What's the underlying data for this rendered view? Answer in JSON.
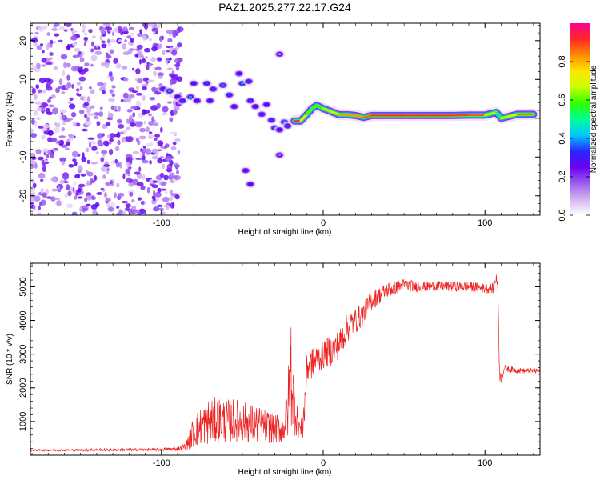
{
  "chart_data": [
    {
      "type": "heatmap",
      "title": "PAZ1.2025.277.22.17.G24",
      "xlabel": "Height of straight line (km)",
      "ylabel": "Frequency (Hz)",
      "xlim": [
        -181,
        134
      ],
      "ylim": [
        -25,
        24.5
      ],
      "xticks": [
        -100,
        0,
        100
      ],
      "yticks": [
        -20,
        -10,
        0,
        10,
        20
      ],
      "colorbar": {
        "label": "Normalized spectral amplitude",
        "range": [
          0,
          1
        ],
        "ticks": [
          0.0,
          0.2,
          0.4,
          0.6,
          0.8
        ],
        "colormap": [
          "#ffffff",
          "#d2b4f0",
          "#9b5ef0",
          "#6a00f0",
          "#2828ff",
          "#00c8ff",
          "#00ff96",
          "#32ff00",
          "#c8ff00",
          "#ffe600",
          "#ff8c00",
          "#ff2828",
          "#ff0090"
        ]
      },
      "noise_region_x": [
        -181,
        -88
      ],
      "ridge_points": [
        {
          "x": -99,
          "y": 7.5,
          "v": 0.35
        },
        {
          "x": -95,
          "y": 7.0,
          "v": 0.4
        },
        {
          "x": -90,
          "y": 5.5,
          "v": 0.3
        },
        {
          "x": -87,
          "y": 4.5,
          "v": 0.35
        },
        {
          "x": -82,
          "y": 5.5,
          "v": 0.4
        },
        {
          "x": -78,
          "y": 4.5,
          "v": 0.3
        },
        {
          "x": -80,
          "y": 9.0,
          "v": 0.3
        },
        {
          "x": -72,
          "y": 9.0,
          "v": 0.35
        },
        {
          "x": -70,
          "y": 4.5,
          "v": 0.3
        },
        {
          "x": -68,
          "y": 7.5,
          "v": 0.35
        },
        {
          "x": -62,
          "y": 8.5,
          "v": 0.4
        },
        {
          "x": -58,
          "y": 6.0,
          "v": 0.35
        },
        {
          "x": -55,
          "y": 3.0,
          "v": 0.3
        },
        {
          "x": -52,
          "y": 11.5,
          "v": 0.3
        },
        {
          "x": -50,
          "y": 9.0,
          "v": 0.4
        },
        {
          "x": -46,
          "y": 9.5,
          "v": 0.35
        },
        {
          "x": -45,
          "y": 4.5,
          "v": 0.35
        },
        {
          "x": -42,
          "y": 3.0,
          "v": 0.3
        },
        {
          "x": -38,
          "y": 1.0,
          "v": 0.35
        },
        {
          "x": -35,
          "y": 3.5,
          "v": 0.3
        },
        {
          "x": -32,
          "y": -0.5,
          "v": 0.35
        },
        {
          "x": -30,
          "y": -2.5,
          "v": 0.4
        },
        {
          "x": -27,
          "y": -3.0,
          "v": 0.3
        },
        {
          "x": -24,
          "y": -1.0,
          "v": 0.45
        },
        {
          "x": -22,
          "y": -2.0,
          "v": 0.35
        },
        {
          "x": -18,
          "y": -0.7,
          "v": 0.95
        },
        {
          "x": -14,
          "y": -0.7,
          "v": 0.9
        },
        {
          "x": -10,
          "y": 1.0,
          "v": 0.6
        },
        {
          "x": -7,
          "y": 2.5,
          "v": 0.55
        },
        {
          "x": -4,
          "y": 3.3,
          "v": 0.55
        },
        {
          "x": 0,
          "y": 2.5,
          "v": 0.6
        },
        {
          "x": 5,
          "y": 1.7,
          "v": 0.7
        },
        {
          "x": 10,
          "y": 0.9,
          "v": 0.8
        },
        {
          "x": 15,
          "y": 0.9,
          "v": 0.85
        },
        {
          "x": 20,
          "y": 0.7,
          "v": 0.8
        },
        {
          "x": 25,
          "y": 0.2,
          "v": 0.85
        },
        {
          "x": 30,
          "y": 0.7,
          "v": 0.9
        },
        {
          "x": 40,
          "y": 0.7,
          "v": 0.92
        },
        {
          "x": 50,
          "y": 0.7,
          "v": 0.92
        },
        {
          "x": 60,
          "y": 0.7,
          "v": 0.9
        },
        {
          "x": 70,
          "y": 0.7,
          "v": 0.92
        },
        {
          "x": 80,
          "y": 0.7,
          "v": 0.9
        },
        {
          "x": 90,
          "y": 0.8,
          "v": 0.9
        },
        {
          "x": 100,
          "y": 0.8,
          "v": 0.85
        },
        {
          "x": 107,
          "y": 1.5,
          "v": 0.45
        },
        {
          "x": 110,
          "y": 0.0,
          "v": 0.5
        },
        {
          "x": 120,
          "y": 1.0,
          "v": 0.85
        },
        {
          "x": 130,
          "y": 1.0,
          "v": 0.85
        }
      ],
      "blobs": [
        {
          "x": -48,
          "y": -13.5,
          "v": 0.3
        },
        {
          "x": -45,
          "y": -17.0,
          "v": 0.3
        },
        {
          "x": -27,
          "y": 16.5,
          "v": 0.1
        },
        {
          "x": -27,
          "y": -9.5,
          "v": 0.15
        }
      ]
    },
    {
      "type": "line",
      "xlabel": "Height of straight line (km)",
      "ylabel": "SNR (10 * v/v)",
      "xlim": [
        -181,
        134
      ],
      "ylim": [
        0,
        5700
      ],
      "xticks": [
        -100,
        0,
        100
      ],
      "yticks": [
        1000,
        2000,
        3000,
        4000,
        5000
      ],
      "line_color": "#ee2222",
      "series": [
        {
          "name": "SNR",
          "x": [
            -181,
            -160,
            -140,
            -120,
            -100,
            -90,
            -85,
            -80,
            -75,
            -70,
            -65,
            -60,
            -55,
            -50,
            -45,
            -40,
            -35,
            -30,
            -25,
            -22,
            -20,
            -18,
            -16,
            -14,
            -12,
            -10,
            -5,
            0,
            5,
            10,
            15,
            20,
            25,
            30,
            35,
            40,
            45,
            50,
            60,
            70,
            80,
            90,
            100,
            105,
            107,
            108,
            109,
            110,
            112,
            115,
            120,
            125,
            130,
            134
          ],
          "y": [
            150,
            150,
            160,
            160,
            170,
            190,
            260,
            700,
            900,
            1000,
            1050,
            1000,
            1050,
            1000,
            950,
            900,
            850,
            800,
            750,
            1300,
            2600,
            1500,
            1200,
            700,
            1100,
            2600,
            2800,
            3000,
            3100,
            3300,
            3800,
            4000,
            4200,
            4600,
            4750,
            4900,
            4980,
            5050,
            5000,
            5020,
            5010,
            5000,
            4950,
            4950,
            5300,
            4900,
            2500,
            2250,
            2600,
            2550,
            2520,
            2500,
            2500,
            2500
          ],
          "noise": [
            30,
            30,
            40,
            40,
            45,
            60,
            120,
            500,
            600,
            700,
            700,
            650,
            650,
            600,
            600,
            550,
            500,
            450,
            400,
            900,
            1800,
            900,
            700,
            200,
            800,
            500,
            450,
            450,
            450,
            450,
            450,
            400,
            350,
            300,
            250,
            250,
            200,
            200,
            150,
            150,
            150,
            150,
            150,
            150,
            150,
            150,
            300,
            150,
            100,
            100,
            80,
            80,
            80,
            80
          ]
        }
      ]
    }
  ]
}
